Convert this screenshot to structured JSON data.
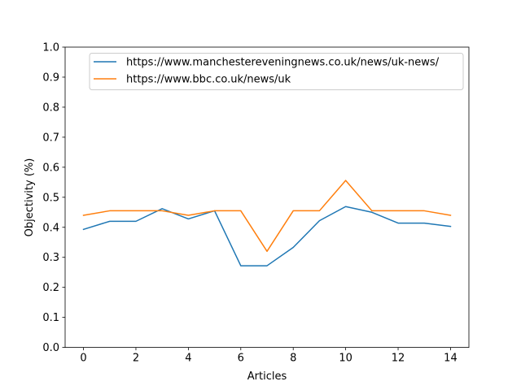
{
  "chart_data": {
    "type": "line",
    "title": "",
    "xlabel": "Articles",
    "ylabel": "Objectivity (%)",
    "xlim": [
      -0.7,
      14.7
    ],
    "ylim": [
      0.0,
      1.0
    ],
    "xticks": [
      0,
      2,
      4,
      6,
      8,
      10,
      12,
      14
    ],
    "xtick_labels": [
      "0",
      "2",
      "4",
      "6",
      "8",
      "10",
      "12",
      "14"
    ],
    "yticks": [
      0.0,
      0.1,
      0.2,
      0.3,
      0.4,
      0.5,
      0.6,
      0.7,
      0.8,
      0.9,
      1.0
    ],
    "ytick_labels": [
      "0.0",
      "0.1",
      "0.2",
      "0.3",
      "0.4",
      "0.5",
      "0.6",
      "0.7",
      "0.8",
      "0.9",
      "1.0"
    ],
    "grid": false,
    "legend_position": "top-right",
    "x": [
      0,
      1,
      2,
      3,
      4,
      5,
      6,
      7,
      8,
      9,
      10,
      11,
      12,
      13,
      14
    ],
    "series": [
      {
        "name": "https://www.manchestereveningnews.co.uk/news/uk-news/",
        "color": "#1f77b4",
        "values": [
          0.393,
          0.42,
          0.42,
          0.462,
          0.428,
          0.455,
          0.272,
          0.272,
          0.333,
          0.422,
          0.469,
          0.45,
          0.414,
          0.414,
          0.403
        ]
      },
      {
        "name": "https://www.bbc.co.uk/news/uk",
        "color": "#ff7f0e",
        "values": [
          0.44,
          0.455,
          0.455,
          0.455,
          0.44,
          0.455,
          0.455,
          0.32,
          0.455,
          0.455,
          0.556,
          0.455,
          0.455,
          0.455,
          0.44
        ]
      }
    ]
  }
}
